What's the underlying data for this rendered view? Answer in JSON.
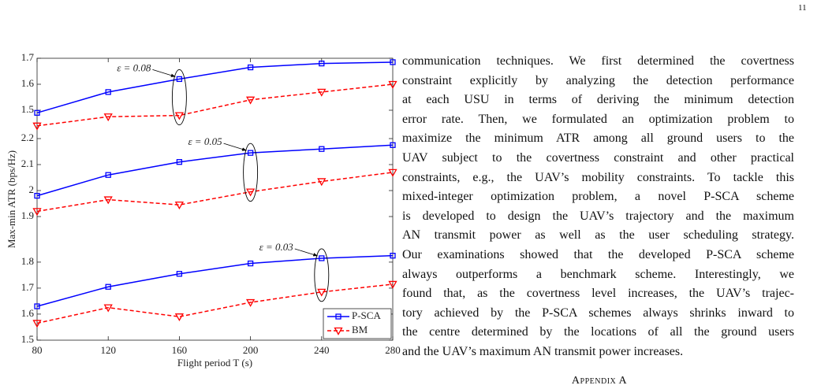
{
  "page_number": "11",
  "chart_data": [
    {
      "type": "line",
      "x": [
        80,
        120,
        160,
        200,
        240,
        280
      ],
      "ylim": [
        1.4,
        1.7
      ],
      "yticks": [
        1.5,
        1.6,
        1.7
      ],
      "annotation": "ε = 0.08",
      "series": [
        {
          "color": "#0000ff",
          "marker": "square",
          "line": "solid",
          "values": [
            1.49,
            1.57,
            1.62,
            1.665,
            1.68,
            1.685
          ]
        },
        {
          "color": "#ff0000",
          "marker": "triangle-down",
          "line": "dashed",
          "values": [
            1.44,
            1.475,
            1.48,
            1.54,
            1.57,
            1.6
          ]
        }
      ]
    },
    {
      "type": "line",
      "x": [
        80,
        120,
        160,
        200,
        240,
        280
      ],
      "ylim": [
        1.88,
        2.2
      ],
      "yticks": [
        1.9,
        2,
        2.1,
        2.2
      ],
      "annotation": "ε = 0.05",
      "series": [
        {
          "color": "#0000ff",
          "marker": "square",
          "line": "solid",
          "values": [
            1.98,
            2.06,
            2.11,
            2.145,
            2.16,
            2.175
          ]
        },
        {
          "color": "#ff0000",
          "marker": "triangle-down",
          "line": "dashed",
          "values": [
            1.92,
            1.965,
            1.945,
            1.995,
            2.035,
            2.07
          ]
        }
      ]
    },
    {
      "type": "line",
      "x": [
        80,
        120,
        160,
        200,
        240,
        280
      ],
      "ylim": [
        1.5,
        1.83
      ],
      "yticks": [
        1.5,
        1.6,
        1.7,
        1.8
      ],
      "annotation": "ε = 0.03",
      "xlim": [
        80,
        280
      ],
      "xticks": [
        80,
        120,
        160,
        200,
        240,
        280
      ],
      "xlabel": "Flight period T (s)",
      "ylabel": "Max-min ATR (bps/Hz)",
      "legend": "lower right",
      "series": [
        {
          "name": "P-SCA",
          "color": "#0000ff",
          "marker": "square",
          "line": "solid",
          "values": [
            1.63,
            1.705,
            1.755,
            1.795,
            1.815,
            1.825
          ]
        },
        {
          "name": "BM",
          "color": "#ff0000",
          "marker": "triangle-down",
          "line": "dashed",
          "values": [
            1.565,
            1.625,
            1.59,
            1.645,
            1.685,
            1.715
          ]
        }
      ]
    }
  ],
  "text": {
    "lines": [
      "communication techniques. We first determined the covertness",
      "constraint explicitly by analyzing the detection performance",
      "at each USU in terms of deriving the minimum detection",
      "error rate. Then, we formulated an optimization problem to",
      "maximize the minimum ATR among all ground users to the",
      "UAV subject to the covertness constraint and other practical",
      "constraints, e.g., the UAV’s mobility constraints. To tackle this",
      "mixed-integer optimization problem, a novel P-SCA scheme",
      "is developed to design the UAV’s trajectory and the maximum",
      "AN transmit power as well as the user scheduling strategy.",
      "Our examinations showed that the developed P-SCA scheme",
      "always outperforms a benchmark scheme. Interestingly, we",
      "found that, as the covertness level increases, the UAV’s trajec-",
      "tory achieved by the P-SCA schemes always shrinks inward to",
      "the centre determined by the locations of all the ground users",
      "and the UAV’s maximum AN transmit power increases."
    ],
    "heading": "Appendix A"
  }
}
